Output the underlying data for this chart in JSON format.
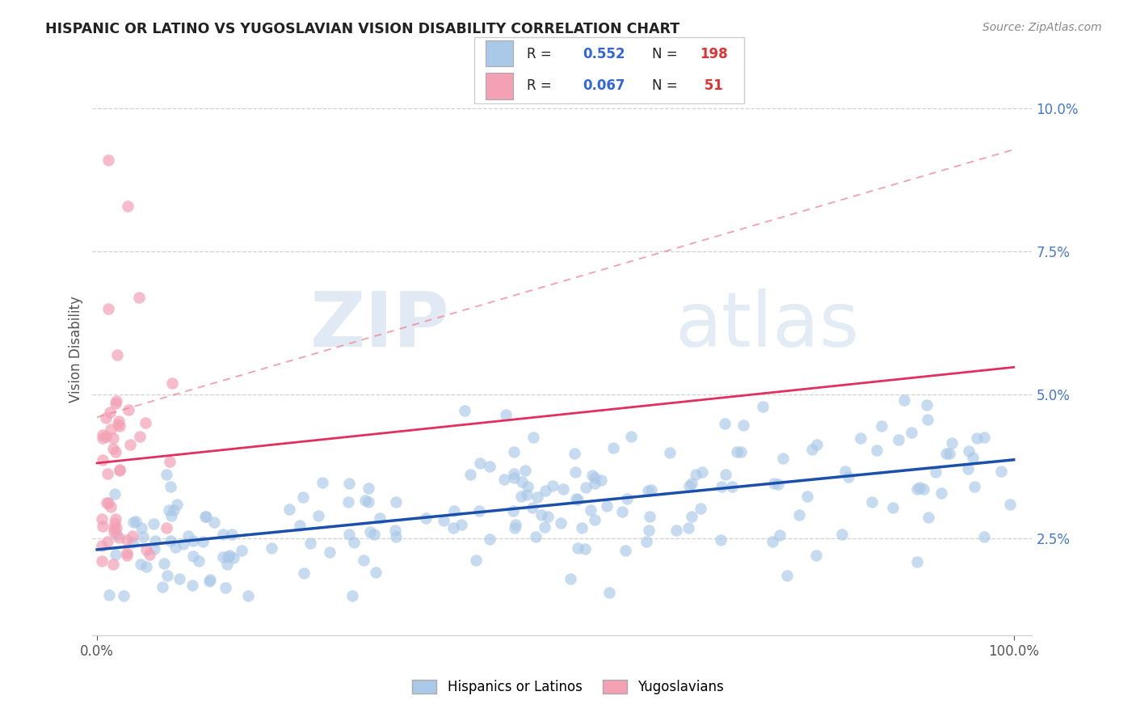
{
  "title": "HISPANIC OR LATINO VS YUGOSLAVIAN VISION DISABILITY CORRELATION CHART",
  "source": "Source: ZipAtlas.com",
  "ylabel": "Vision Disability",
  "legend_labels": [
    "Hispanics or Latinos",
    "Yugoslavians"
  ],
  "blue_R": 0.552,
  "blue_N": 198,
  "pink_R": 0.067,
  "pink_N": 51,
  "blue_color": "#aac8e8",
  "pink_color": "#f4a0b5",
  "blue_line_color": "#1a4faa",
  "pink_line_color": "#e03060",
  "pink_dash_color": "#f08090",
  "watermark_zip": "ZIP",
  "watermark_atlas": "atlas",
  "xlim_min": -0.005,
  "xlim_max": 1.02,
  "ylim_min": 0.008,
  "ylim_max": 0.108,
  "ytick_vals": [
    0.025,
    0.05,
    0.075,
    0.1
  ],
  "ytick_labels": [
    "2.5%",
    "5.0%",
    "7.5%",
    "10.0%"
  ],
  "xtick_vals": [
    0.0,
    1.0
  ],
  "xtick_labels": [
    "0.0%",
    "100.0%"
  ],
  "grid_color": "#cccccc",
  "bg_color": "#ffffff",
  "title_color": "#222222",
  "source_color": "#888888",
  "tick_color_y": "#4477cc",
  "tick_color_x": "#555555"
}
